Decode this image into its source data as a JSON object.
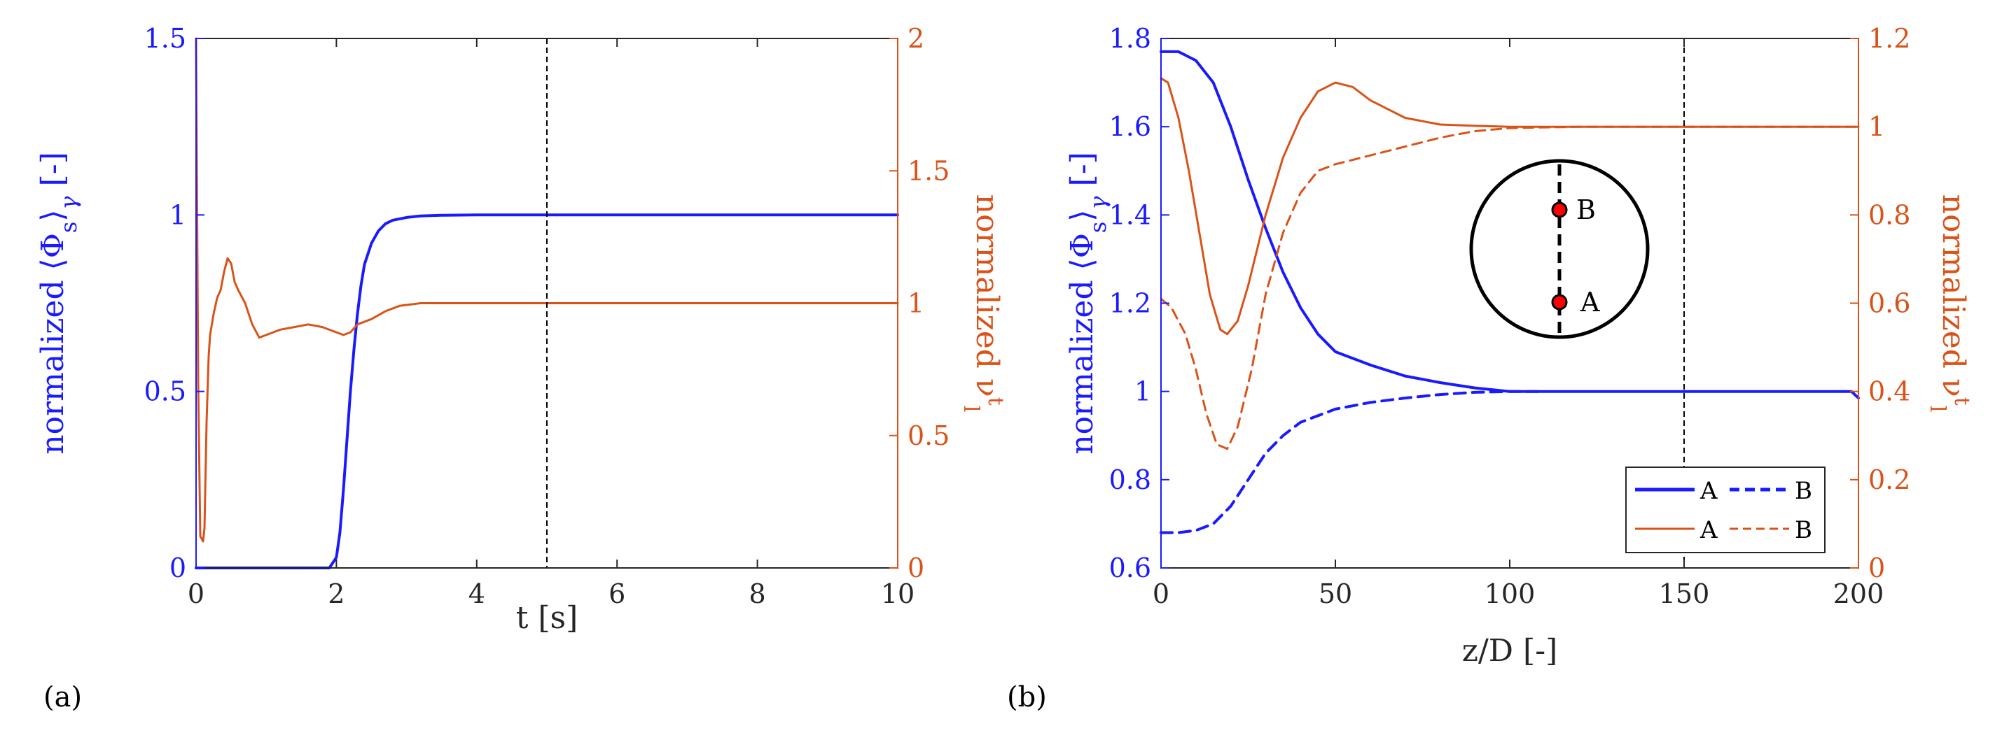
{
  "colors": {
    "blue": "#1a1aff",
    "orange": "#d95319",
    "black": "#000000",
    "marker_fill": "#ff0000"
  },
  "labels": {
    "panel_a": "(a)",
    "panel_b": "(b)"
  },
  "chart_data": [
    {
      "id": "a",
      "type": "line",
      "xlabel": "t [s]",
      "ylabel_left": {
        "pre": "normalized ⟨Φ",
        "sub1": "s",
        "mid": "⟩",
        "sub2": "γ",
        "post": " [-]"
      },
      "ylabel_right": {
        "pre": "normalized ν",
        "sup": "t",
        "sub": "l"
      },
      "xlim": [
        0,
        10
      ],
      "ylim_left": [
        0,
        1.5
      ],
      "ylim_right": [
        0,
        2
      ],
      "xticks": [
        "0",
        "2",
        "4",
        "6",
        "8",
        "10"
      ],
      "yticks_left": [
        "0",
        "0.5",
        "1",
        "1.5"
      ],
      "yticks_right": [
        "0",
        "0.5",
        "1",
        "1.5",
        "2"
      ],
      "vline_x": 5,
      "grid": false,
      "series": [
        {
          "axis": "left",
          "color": "blue",
          "style": "solid",
          "x": [
            0,
            1.8,
            1.9,
            2.0,
            2.05,
            2.1,
            2.15,
            2.2,
            2.25,
            2.3,
            2.35,
            2.4,
            2.5,
            2.6,
            2.7,
            2.8,
            3.0,
            3.2,
            3.5,
            4.0,
            5,
            10
          ],
          "y": [
            0,
            0,
            0,
            0.03,
            0.1,
            0.22,
            0.36,
            0.5,
            0.62,
            0.72,
            0.8,
            0.86,
            0.92,
            0.955,
            0.975,
            0.985,
            0.993,
            0.997,
            0.999,
            1.0,
            1.0,
            1.0
          ]
        },
        {
          "axis": "right",
          "color": "orange",
          "style": "solid",
          "x": [
            0,
            0.03,
            0.06,
            0.1,
            0.12,
            0.15,
            0.18,
            0.2,
            0.25,
            0.3,
            0.35,
            0.4,
            0.45,
            0.5,
            0.55,
            0.6,
            0.7,
            0.8,
            0.9,
            1.0,
            1.1,
            1.2,
            1.4,
            1.6,
            1.8,
            2.0,
            2.1,
            2.2,
            2.3,
            2.5,
            2.7,
            2.9,
            3.2,
            3.5,
            4,
            5,
            10
          ],
          "y": [
            2.0,
            0.7,
            0.12,
            0.1,
            0.15,
            0.55,
            0.8,
            0.88,
            0.96,
            1.02,
            1.05,
            1.12,
            1.17,
            1.15,
            1.08,
            1.05,
            1.0,
            0.92,
            0.87,
            0.88,
            0.89,
            0.9,
            0.91,
            0.92,
            0.91,
            0.89,
            0.88,
            0.89,
            0.92,
            0.94,
            0.97,
            0.99,
            1.0,
            1.0,
            1.0,
            1.0,
            1.0
          ]
        }
      ]
    },
    {
      "id": "b",
      "type": "line",
      "xlabel": "z/D [-]",
      "ylabel_left": {
        "pre": "normalized ⟨Φ",
        "sub1": "s",
        "mid": "⟩",
        "sub2": "γ",
        "post": " [-]"
      },
      "ylabel_right": {
        "pre": "normalized ν",
        "sup": "t",
        "sub": "l"
      },
      "xlim": [
        0,
        200
      ],
      "ylim_left": [
        0.6,
        1.8
      ],
      "ylim_right": [
        0,
        1.2
      ],
      "xticks": [
        "0",
        "50",
        "100",
        "150",
        "200"
      ],
      "yticks_left": [
        "0.6",
        "0.8",
        "1",
        "1.2",
        "1.4",
        "1.6",
        "1.8"
      ],
      "yticks_right": [
        "0",
        "0.2",
        "0.4",
        "0.6",
        "0.8",
        "1",
        "1.2"
      ],
      "vline_x": 150,
      "grid": false,
      "legend": {
        "position": "lower-right",
        "rows": [
          {
            "color": "blue",
            "labels": [
              "A",
              "B"
            ]
          },
          {
            "color": "orange",
            "labels": [
              "A",
              "B"
            ]
          }
        ]
      },
      "inset": {
        "points": [
          "A",
          "B"
        ]
      },
      "series": [
        {
          "name": "A",
          "axis": "left",
          "color": "blue",
          "style": "solid",
          "x": [
            0,
            5,
            10,
            15,
            20,
            25,
            30,
            35,
            40,
            45,
            50,
            60,
            70,
            80,
            90,
            100,
            120,
            150,
            180,
            198,
            200
          ],
          "y": [
            1.77,
            1.77,
            1.75,
            1.7,
            1.6,
            1.48,
            1.37,
            1.27,
            1.19,
            1.13,
            1.09,
            1.06,
            1.035,
            1.02,
            1.008,
            1.0,
            1.0,
            1.0,
            1.0,
            1.0,
            0.985
          ]
        },
        {
          "name": "B",
          "axis": "left",
          "color": "blue",
          "style": "dashed",
          "x": [
            0,
            5,
            10,
            15,
            20,
            25,
            30,
            35,
            40,
            50,
            60,
            70,
            80,
            90,
            100,
            110
          ],
          "y": [
            0.68,
            0.68,
            0.685,
            0.7,
            0.74,
            0.8,
            0.86,
            0.9,
            0.93,
            0.96,
            0.975,
            0.985,
            0.993,
            0.998,
            1.0,
            1.0
          ]
        },
        {
          "name": "A",
          "axis": "right",
          "color": "orange",
          "style": "solid",
          "x": [
            0,
            2,
            5,
            8,
            11,
            14,
            17,
            19,
            22,
            25,
            30,
            35,
            40,
            45,
            50,
            55,
            60,
            70,
            80,
            90,
            100,
            120,
            150,
            180,
            200
          ],
          "y": [
            1.11,
            1.1,
            1.02,
            0.9,
            0.76,
            0.62,
            0.54,
            0.53,
            0.56,
            0.64,
            0.8,
            0.93,
            1.02,
            1.08,
            1.1,
            1.09,
            1.06,
            1.02,
            1.005,
            1.002,
            1.0,
            1.0,
            1.0,
            1.0,
            1.0
          ]
        },
        {
          "name": "B",
          "axis": "right",
          "color": "orange",
          "style": "dashed",
          "x": [
            0,
            3,
            7,
            10,
            13,
            16,
            19,
            22,
            26,
            30,
            35,
            40,
            45,
            50,
            60,
            70,
            80,
            90,
            100,
            120,
            150,
            180,
            200
          ],
          "y": [
            0.61,
            0.59,
            0.53,
            0.45,
            0.35,
            0.28,
            0.27,
            0.32,
            0.45,
            0.62,
            0.76,
            0.85,
            0.9,
            0.915,
            0.935,
            0.955,
            0.975,
            0.99,
            0.997,
            1.0,
            1.0,
            1.0,
            1.0
          ]
        }
      ]
    }
  ]
}
